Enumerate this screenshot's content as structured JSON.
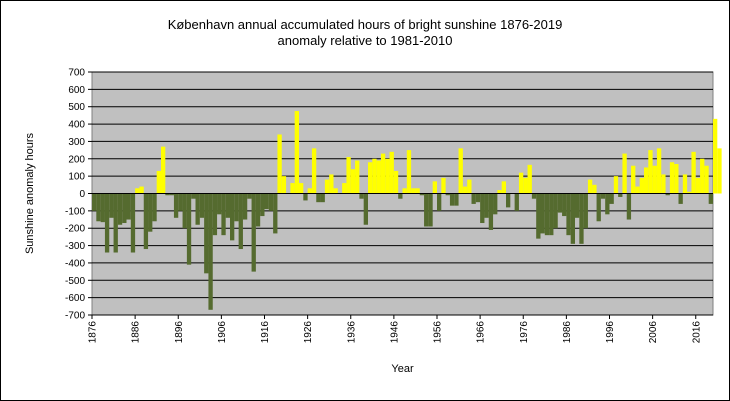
{
  "chart_data": {
    "type": "bar",
    "title": "København  annual accumulated hours of bright sunshine 1876-2019",
    "subtitle": "anomaly relative to 1981-2010",
    "xlabel": "Year",
    "ylabel": "Sunshine anomaly hours",
    "ylim": [
      -700,
      700
    ],
    "yticks": [
      700,
      600,
      500,
      400,
      300,
      200,
      100,
      0,
      -100,
      -200,
      -300,
      -400,
      -500,
      -600,
      -700
    ],
    "xticks": [
      "1876",
      "1886",
      "1896",
      "1906",
      "1916",
      "1926",
      "1936",
      "1946",
      "1956",
      "1966",
      "1976",
      "1986",
      "1996",
      "2006",
      "2016"
    ],
    "grid": true,
    "legend": "none",
    "colors": {
      "positive": "#ffff00",
      "negative": "#556b2f",
      "plot_bg": "#c0c0c0",
      "gridline": "#000000"
    },
    "x_start": 1876,
    "x_end": 2019,
    "values": [
      -100,
      -160,
      -165,
      -340,
      -140,
      -340,
      -180,
      -170,
      -150,
      -340,
      30,
      40,
      -320,
      -220,
      -160,
      130,
      270,
      -10,
      -10,
      -140,
      -100,
      -200,
      -410,
      -30,
      -180,
      -140,
      -460,
      -670,
      -240,
      -120,
      -240,
      -140,
      -270,
      -160,
      -320,
      -150,
      -30,
      -450,
      -190,
      -130,
      -90,
      -100,
      -230,
      340,
      100,
      0,
      60,
      475,
      60,
      -40,
      30,
      260,
      -50,
      -50,
      80,
      110,
      30,
      0,
      60,
      210,
      140,
      190,
      -30,
      -180,
      180,
      200,
      190,
      230,
      200,
      240,
      130,
      -30,
      30,
      250,
      30,
      30,
      -10,
      -190,
      -190,
      70,
      -100,
      90,
      -10,
      -70,
      -70,
      260,
      40,
      80,
      -60,
      -50,
      -170,
      -140,
      -210,
      -120,
      20,
      70,
      -80,
      0,
      -100,
      120,
      90,
      165,
      -30,
      -260,
      -230,
      -240,
      -240,
      -200,
      -110,
      -130,
      -240,
      -290,
      -140,
      -290,
      -200,
      80,
      50,
      -160,
      -30,
      -120,
      -60,
      100,
      -20,
      230,
      -150,
      160,
      40,
      90,
      150,
      250,
      160,
      260,
      110,
      -10,
      180,
      170,
      -60,
      110,
      10,
      240,
      90,
      200,
      160,
      -60,
      430,
      260
    ]
  }
}
